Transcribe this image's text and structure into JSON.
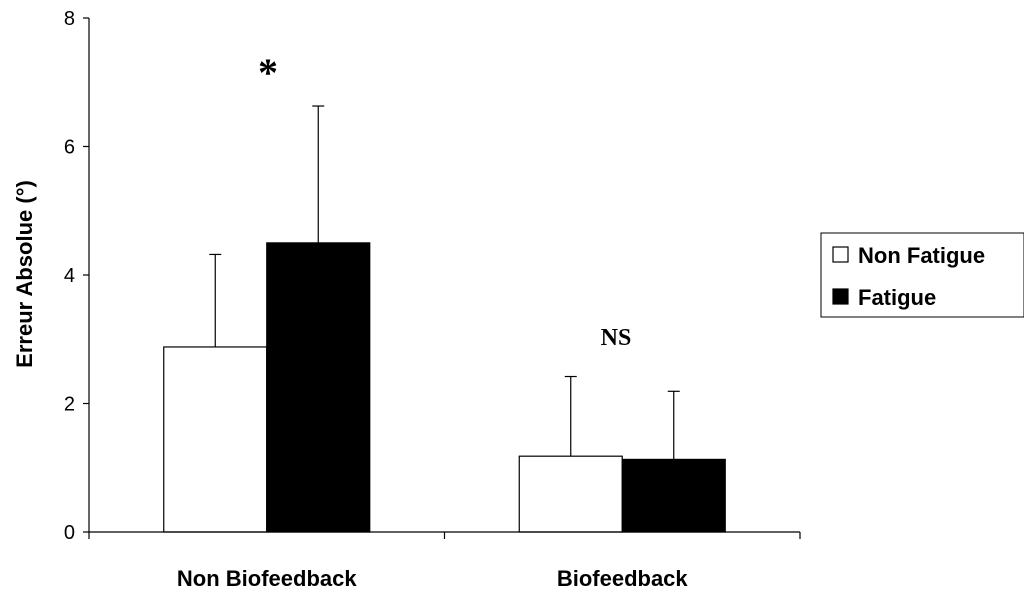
{
  "chart_data": {
    "type": "bar",
    "categories": [
      "Non Biofeedback",
      "Biofeedback"
    ],
    "series": [
      {
        "name": "Non Fatigue",
        "values": [
          2.88,
          1.18
        ],
        "errors": [
          1.44,
          1.24
        ],
        "color": "#ffffff"
      },
      {
        "name": "Fatigue",
        "values": [
          4.5,
          1.13
        ],
        "errors": [
          2.13,
          1.06
        ],
        "color": "#000000"
      }
    ],
    "ylabel": "Erreur Absolue (°)",
    "xlabel": "",
    "ylim": [
      0,
      8
    ],
    "yticks": [
      0,
      2,
      4,
      6,
      8
    ],
    "annotations": [
      "*",
      "NS"
    ],
    "legend_position": "right",
    "grid": false
  }
}
